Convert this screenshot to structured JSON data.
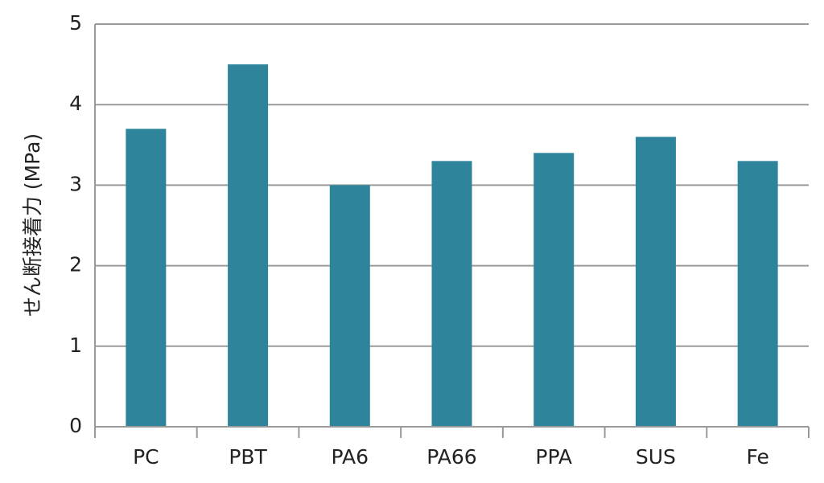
{
  "chart_data": {
    "type": "bar",
    "y_label": "せん断接着力 (MPa)",
    "categories": [
      "PC",
      "PBT",
      "PA6",
      "PA66",
      "PPA",
      "SUS",
      "Fe"
    ],
    "values": [
      3.7,
      4.5,
      3.0,
      3.3,
      3.4,
      3.6,
      3.3
    ],
    "color": "#2e859b",
    "ylim": [
      0,
      5
    ],
    "yticks": [
      0,
      1,
      2,
      3,
      4,
      5
    ],
    "grid": true
  }
}
